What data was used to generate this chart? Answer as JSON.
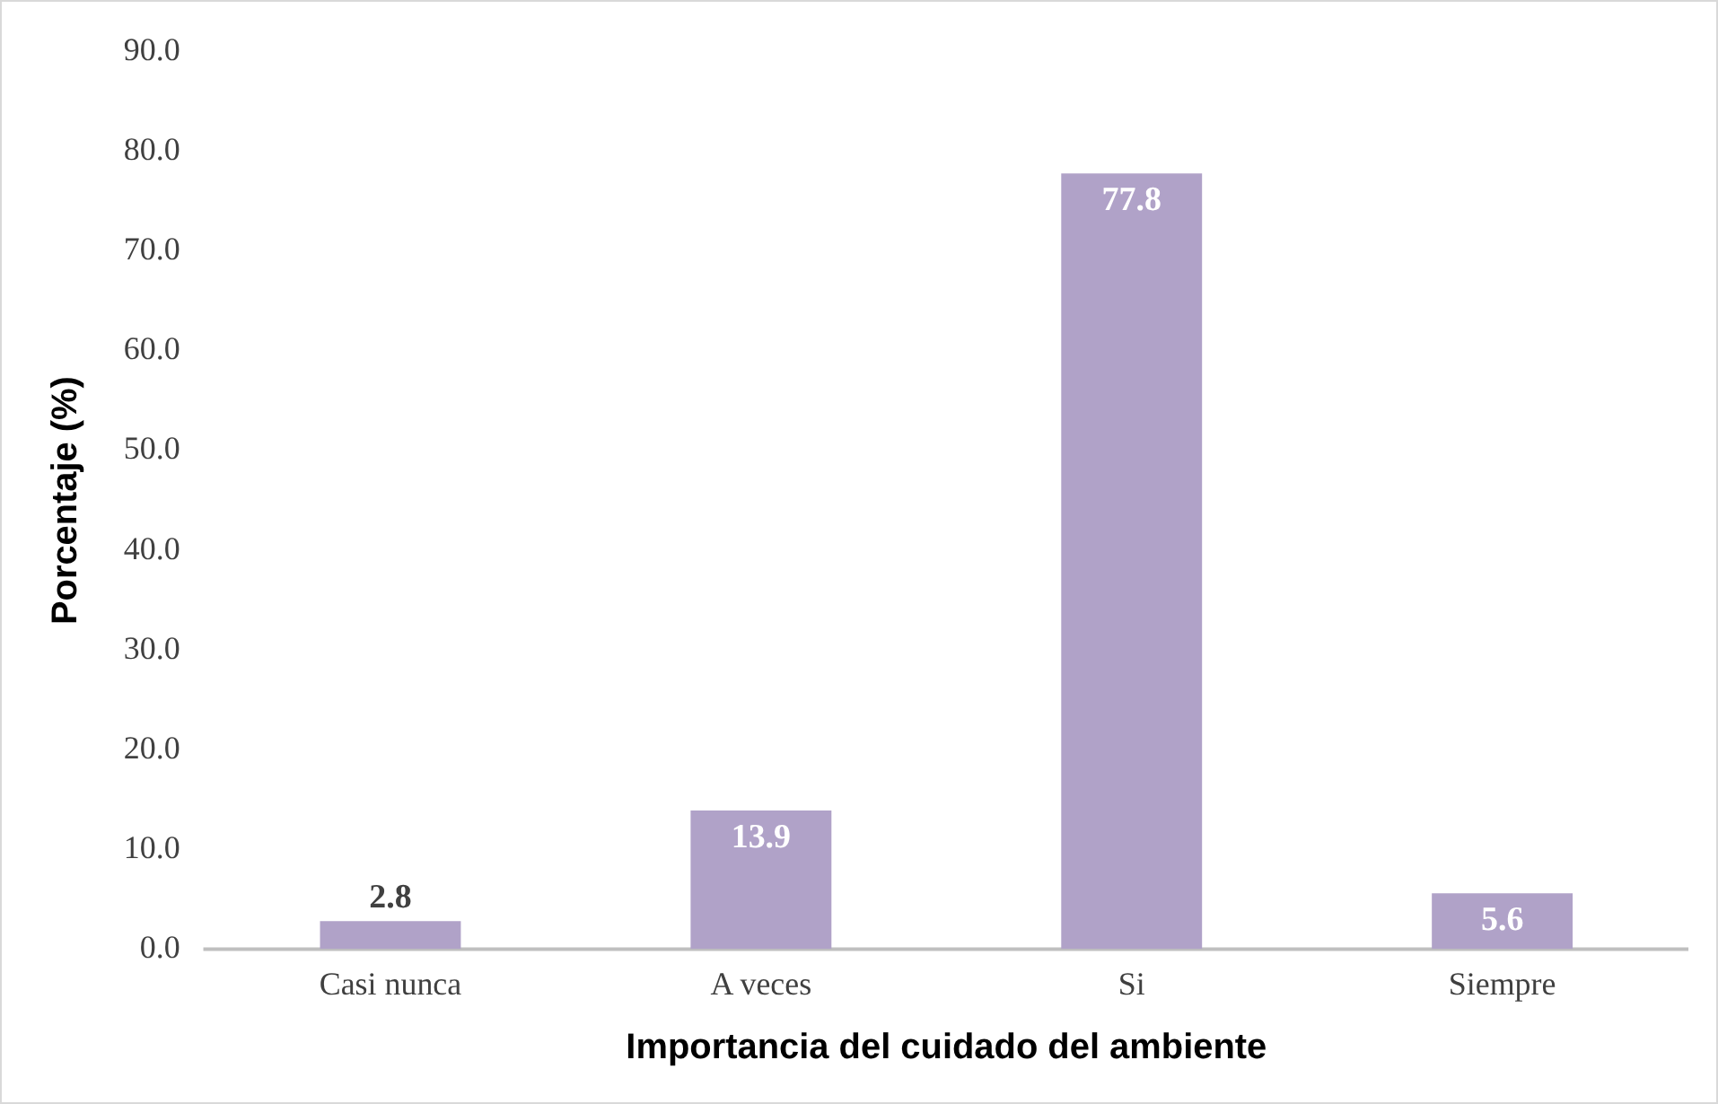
{
  "chart_data": {
    "type": "bar",
    "xlabel": "Importancia del cuidado del ambiente",
    "ylabel": "Porcentaje (%)",
    "categories": [
      "Casi nunca",
      "A veces",
      "Si",
      "Siempre"
    ],
    "values": [
      2.8,
      13.9,
      77.8,
      5.6
    ],
    "color": "#b0a2c8",
    "ylim": [
      0,
      90
    ],
    "yticks": [
      {
        "value": 0,
        "label": "0.0"
      },
      {
        "value": 10,
        "label": "10.0"
      },
      {
        "value": 20,
        "label": "20.0"
      },
      {
        "value": 30,
        "label": "30.0"
      },
      {
        "value": 40,
        "label": "40.0"
      },
      {
        "value": 50,
        "label": "50.0"
      },
      {
        "value": 60,
        "label": "60.0"
      },
      {
        "value": 70,
        "label": "70.0"
      },
      {
        "value": 80,
        "label": "80.0"
      },
      {
        "value": 90,
        "label": "90.0"
      }
    ],
    "grid": false,
    "legend": false,
    "data_labels": true
  }
}
